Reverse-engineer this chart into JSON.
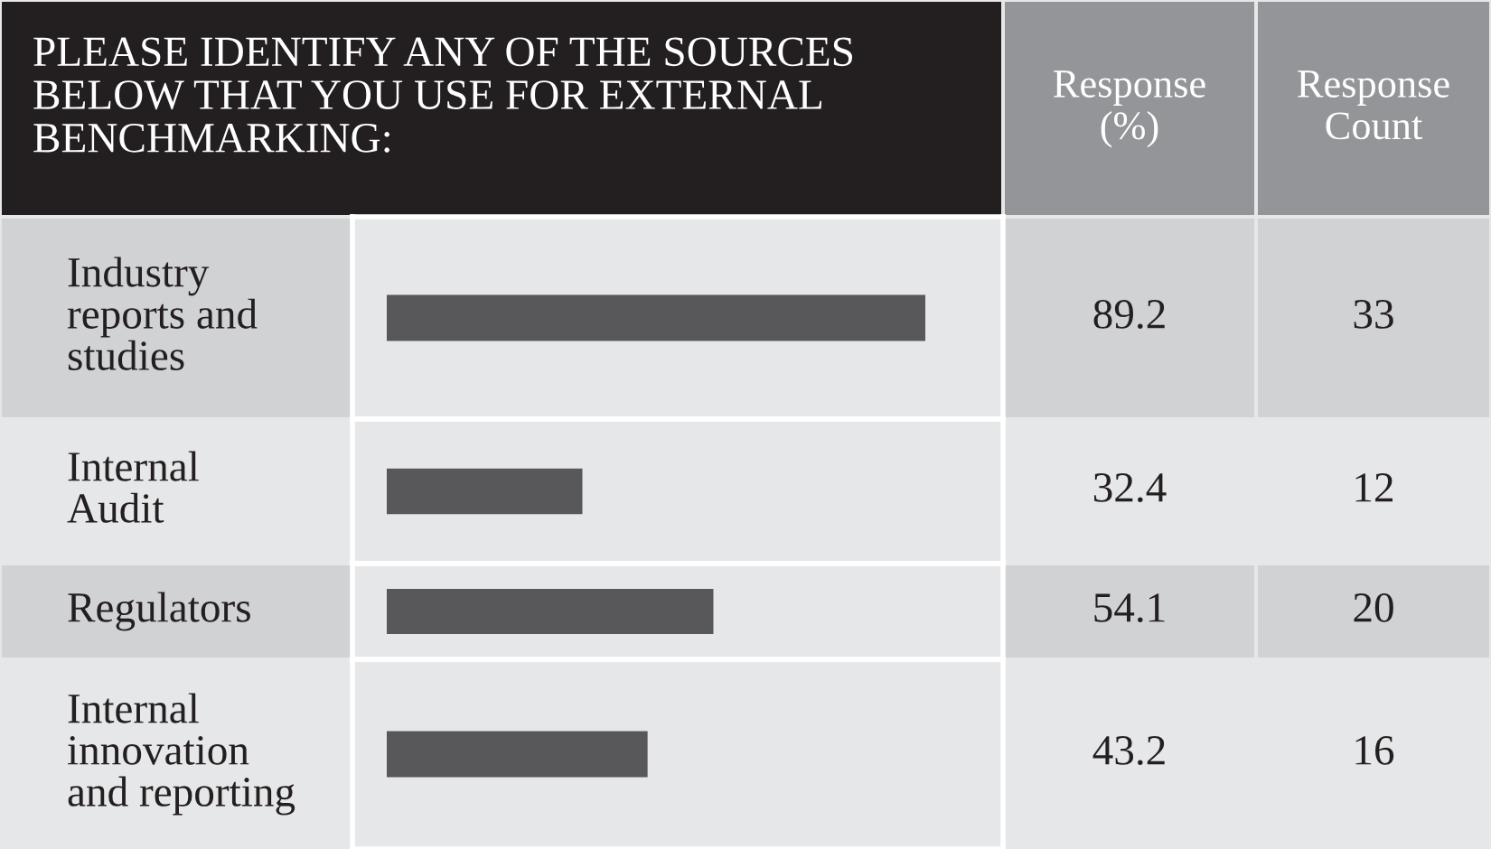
{
  "chart_data": {
    "type": "bar",
    "orientation": "horizontal",
    "title": "PLEASE IDENTIFY ANY OF THE SOURCES\nBELOW THAT YOU USE FOR EXTERNAL\nBENCHMARKING:",
    "categories": [
      "Industry\nreports and\nstudies",
      "Internal\nAudit",
      "Regulators",
      "Internal\ninnovation\nand reporting"
    ],
    "values": [
      89.2,
      32.4,
      54.1,
      43.2
    ],
    "color": "#58585a",
    "data_labels": true,
    "annotations": [
      "Response\n(%)",
      "Response\nCount",
      "33",
      "12",
      "20",
      "16"
    ]
  }
}
